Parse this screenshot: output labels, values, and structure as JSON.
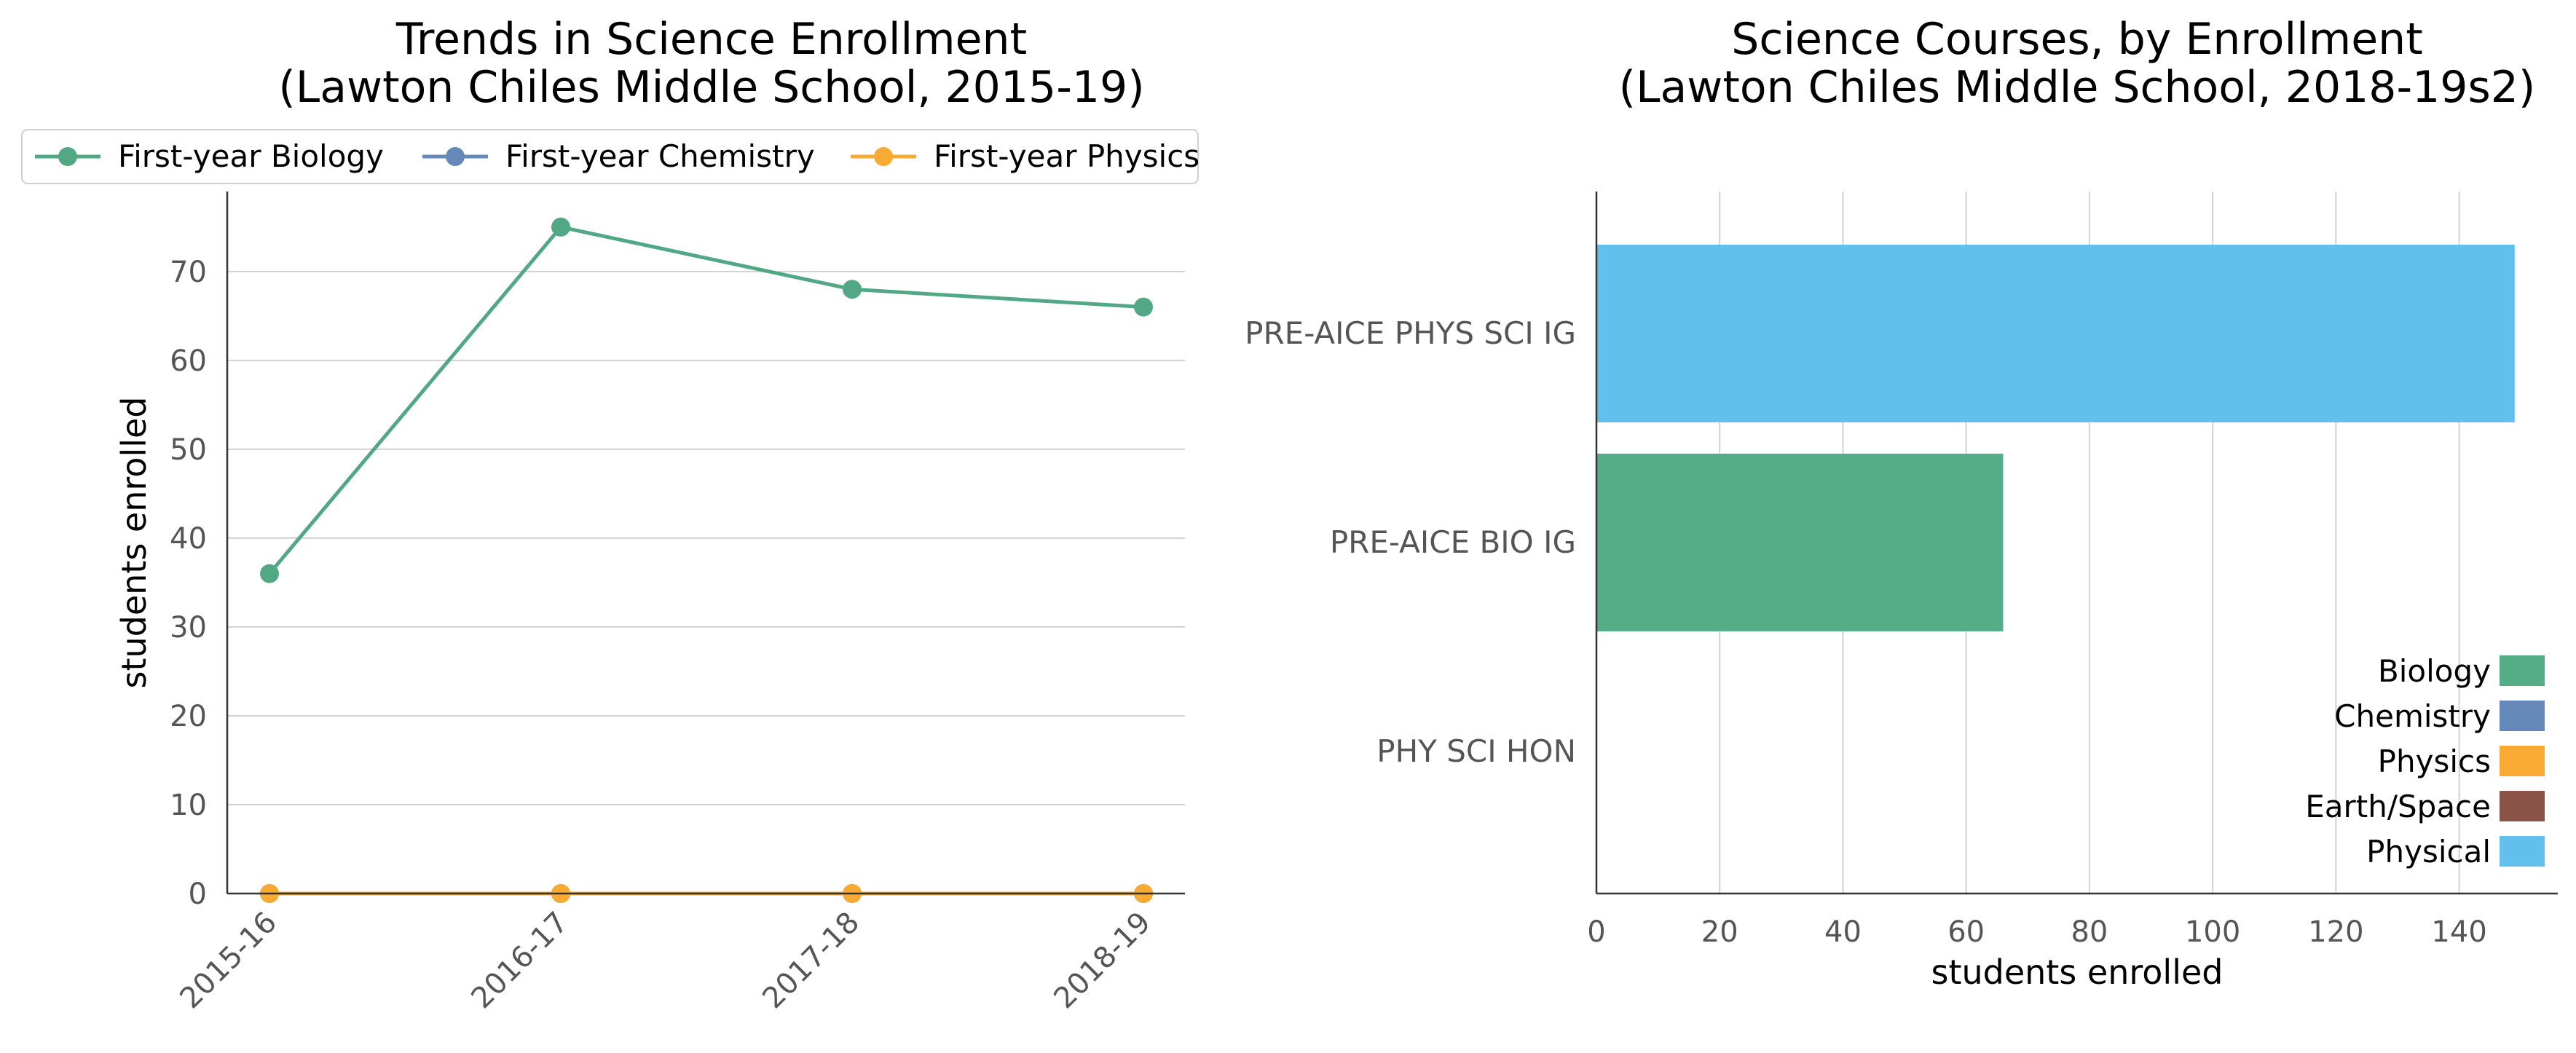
{
  "chart_data": [
    {
      "type": "line",
      "title": "Trends in Science Enrollment",
      "subtitle": "(Lawton Chiles Middle School, 2015-19)",
      "xlabel": "",
      "ylabel": "students enrolled",
      "categories": [
        "2015-16",
        "2016-17",
        "2017-18",
        "2018-19"
      ],
      "ylim": [
        0,
        79
      ],
      "yticks": [
        0,
        10,
        20,
        30,
        40,
        50,
        60,
        70
      ],
      "grid": "horizontal",
      "legend_position": "top",
      "series": [
        {
          "name": "First-year Biology",
          "color": "#52a884",
          "values": [
            36,
            75,
            68,
            66
          ]
        },
        {
          "name": "First-year Chemistry",
          "color": "#6488b8",
          "values": [
            0,
            0,
            0,
            0
          ]
        },
        {
          "name": "First-year Physics",
          "color": "#f9aa33",
          "values": [
            0,
            0,
            0,
            0
          ]
        }
      ]
    },
    {
      "type": "bar",
      "orientation": "horizontal",
      "title": "Science Courses, by Enrollment",
      "subtitle": "(Lawton Chiles Middle School, 2018-19s2)",
      "xlabel": "students enrolled",
      "ylabel": "",
      "xlim": [
        0,
        156
      ],
      "xticks": [
        0,
        20,
        40,
        60,
        80,
        100,
        120,
        140
      ],
      "grid": "vertical",
      "legend_position": "lower-right",
      "categories": [
        "PRE-AICE PHYS SCI IG",
        "PRE-AICE BIO IG",
        "PHY SCI HON"
      ],
      "values": [
        149,
        66,
        0
      ],
      "bar_colors": [
        "#63bfec",
        "#55ad87",
        "#63bfec"
      ],
      "legend": [
        {
          "label": "Biology",
          "color": "#55ad87"
        },
        {
          "label": "Chemistry",
          "color": "#6488b8"
        },
        {
          "label": "Physics",
          "color": "#f9aa33"
        },
        {
          "label": "Earth/Space",
          "color": "#8c5449"
        },
        {
          "label": "Physical",
          "color": "#63bfec"
        }
      ]
    }
  ]
}
